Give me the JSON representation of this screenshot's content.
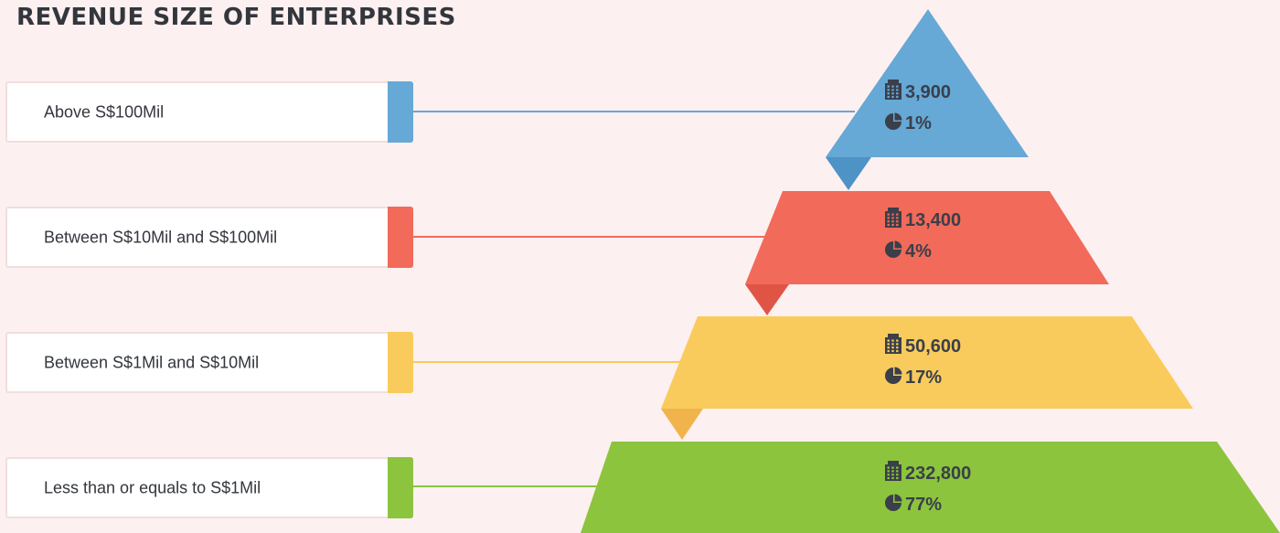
{
  "chart_data": {
    "type": "pyramid",
    "title": "REVENUE SIZE OF ENTERPRISES",
    "levels": [
      {
        "label": "Above S$100Mil",
        "enterprises": "3,900",
        "share": "1%",
        "color": "#66a8d6",
        "shade": "#4d93c6"
      },
      {
        "label": "Between S$10Mil and S$100Mil",
        "enterprises": "13,400",
        "share": "4%",
        "color": "#f26a5a",
        "shade": "#e05446"
      },
      {
        "label": "Between S$1Mil and S$10Mil",
        "enterprises": "50,600",
        "share": "17%",
        "color": "#f9cb5c",
        "shade": "#f1b34c"
      },
      {
        "label": "Less than or equals to S$1Mil",
        "enterprises": "232,800",
        "share": "77%",
        "color": "#8cc43e",
        "shade": "#77ad32"
      }
    ],
    "icons": {
      "count": "building-icon",
      "share": "pie-chart-icon"
    }
  }
}
